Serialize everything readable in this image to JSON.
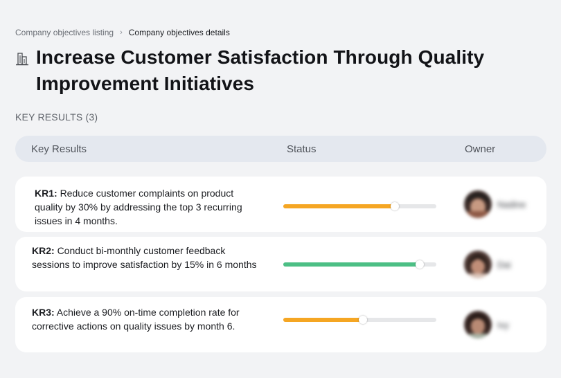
{
  "breadcrumb": {
    "parent": "Company objectives listing",
    "separator": "›",
    "current": "Company objectives details"
  },
  "title": {
    "icon": "building-icon",
    "text": "Increase Customer Satisfaction Through Quality Improvement Initiatives"
  },
  "section": {
    "label": "KEY RESULTS (3)"
  },
  "table": {
    "columns": [
      "Key Results",
      "Status",
      "Owner"
    ]
  },
  "colors": {
    "orange": "#f5a623",
    "green": "#4cbf85",
    "track": "#e6e7e9"
  },
  "key_results": [
    {
      "code": "KR1:",
      "text": "Reduce customer complaints on product quality by 30% by addressing the top 3 recurring issues in 4 months.",
      "progress": 0.73,
      "color": "#f5a623",
      "owner": "Nadine"
    },
    {
      "code": "KR2:",
      "text": "Conduct bi-monthly customer feedback sessions to improve satisfaction by 15% in 6 months",
      "progress": 0.89,
      "color": "#4cbf85",
      "owner": "Dai"
    },
    {
      "code": "KR3:",
      "text": "Achieve a 90% on-time completion rate for corrective actions on quality issues by month 6.",
      "progress": 0.52,
      "color": "#f5a623",
      "owner": "Ivy"
    }
  ]
}
